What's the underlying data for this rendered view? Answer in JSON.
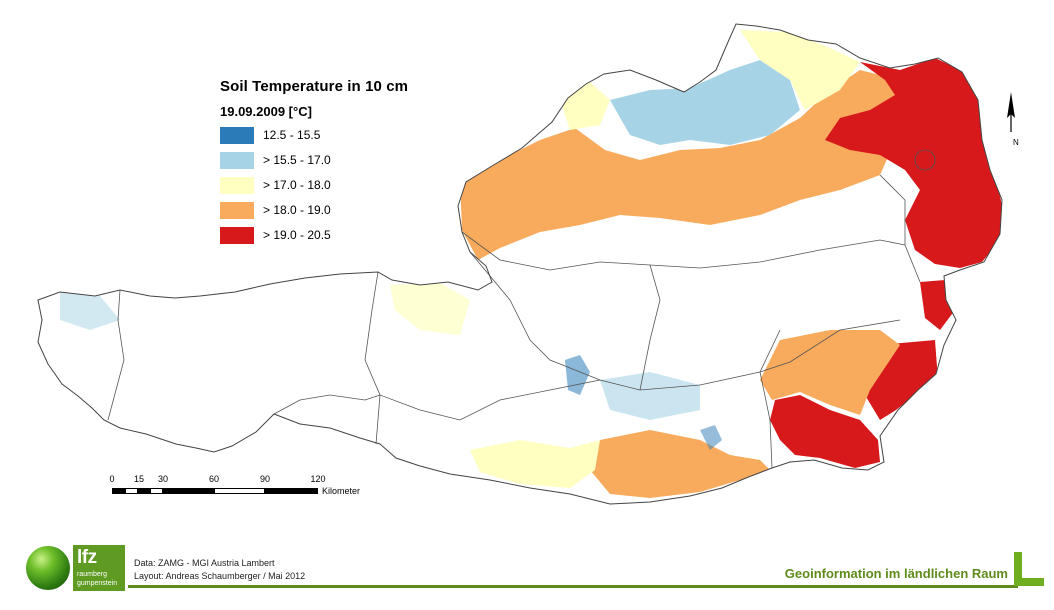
{
  "legend": {
    "title": "Soil Temperature in 10 cm",
    "date": "19.09.2009 [°C]",
    "classes": [
      {
        "label": "12.5 - 15.5",
        "color": "#2b7bb8"
      },
      {
        "label": "> 15.5 - 17.0",
        "color": "#a6d4e6"
      },
      {
        "label": "> 17.0 - 18.0",
        "color": "#ffffc2"
      },
      {
        "label": "> 18.0 - 19.0",
        "color": "#f8ab5d"
      },
      {
        "label": "> 19.0 - 20.5",
        "color": "#d7191c"
      }
    ]
  },
  "scalebar": {
    "ticks": [
      "0",
      "15",
      "30",
      "60",
      "90",
      "120"
    ],
    "unit": "Kilometer"
  },
  "north_arrow": {
    "letter": "N"
  },
  "footer": {
    "data_credit": "Data: ZAMG - MGI Austria Lambert",
    "layout_credit": "Layout: Andreas Schaumberger / Mai 2012",
    "slogan": "Geoinformation im ländlichen Raum",
    "logo": {
      "main": "lfz",
      "line1": "raumberg",
      "line2": "gumpenstein"
    }
  },
  "colors": {
    "brand_green": "#5e8c1b",
    "boundary": "#555555"
  }
}
